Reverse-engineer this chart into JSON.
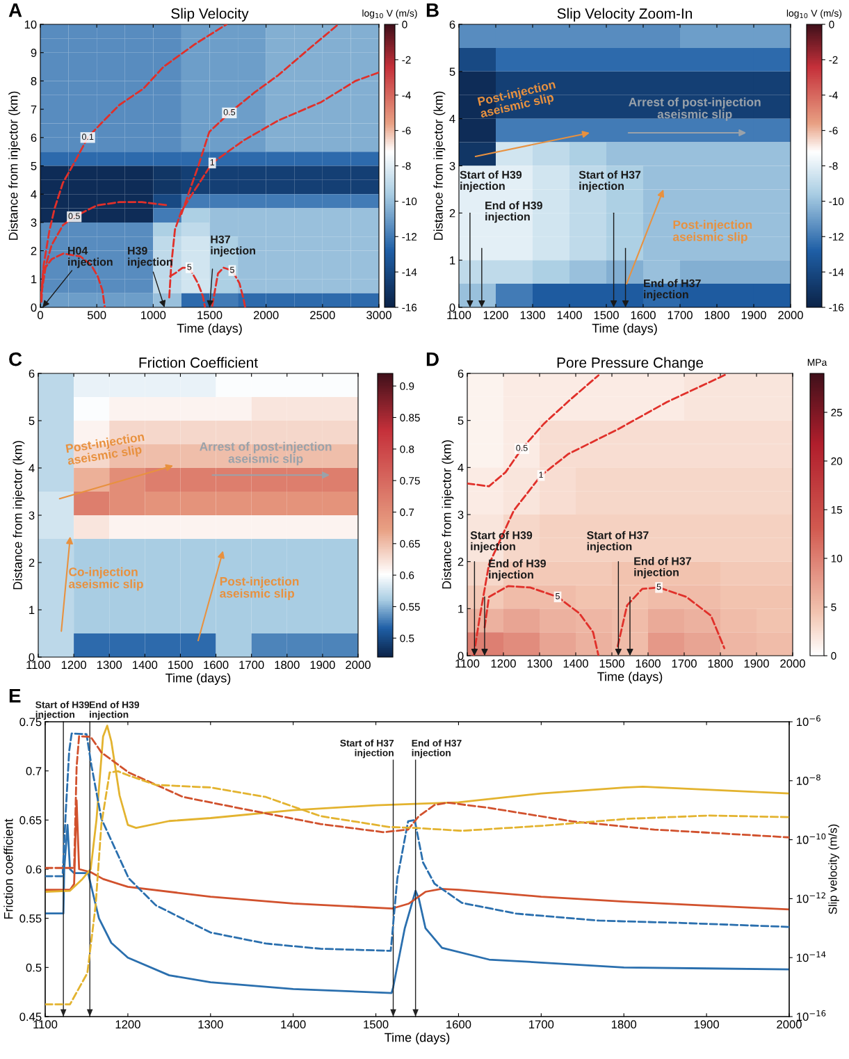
{
  "chart_data": [
    {
      "type": "heatmap",
      "title": "Slip Velocity",
      "xlabel": "Time (days)",
      "ylabel": "Distance from injector (km)",
      "clabel": "log$_{10}$ V (m/s)",
      "xlim": [
        0,
        3000
      ],
      "xticks": [
        0,
        500,
        1000,
        1500,
        2000,
        2500,
        3000
      ],
      "ylim": [
        0,
        10
      ],
      "yticks": [
        0,
        1,
        2,
        3,
        4,
        5,
        6,
        7,
        8,
        9,
        10
      ],
      "clim": [
        -16,
        0
      ],
      "cticks": [
        -16,
        -14,
        -12,
        -10,
        -8,
        -6,
        -4,
        -2,
        0
      ],
      "cells": [
        [
          -11.5,
          -11.5,
          -11.5,
          -11.5,
          -11.5,
          -11,
          -11,
          -11,
          -10.5,
          -10.5,
          -10.5,
          -10.5
        ],
        [
          -11.5,
          -11.5,
          -11.5,
          -11.5,
          -11.5,
          -11,
          -11,
          -11,
          -10.5,
          -10.5,
          -10.5,
          -10.5
        ],
        [
          -11.5,
          -11.5,
          -11.5,
          -11.5,
          -11.5,
          -11,
          -11,
          -11,
          -10.5,
          -10.5,
          -10.5,
          -10.5
        ],
        [
          -11.5,
          -11.5,
          -11.5,
          -11.5,
          -11.5,
          -11,
          -11,
          -11,
          -10.5,
          -10.5,
          -10.5,
          -10.5
        ],
        [
          -11.5,
          -11.5,
          -11.5,
          -11.5,
          -11.5,
          -11,
          -11,
          -11,
          -10.5,
          -10.5,
          -10.5,
          -10.5
        ],
        [
          -11.5,
          -11.5,
          -11.5,
          -11.5,
          -11.5,
          -11,
          -11,
          -11,
          -10.5,
          -10.5,
          -10.5,
          -10.5
        ],
        [
          -11.5,
          -11.5,
          -11.5,
          -11.5,
          -11.5,
          -11,
          -11,
          -11,
          -10.5,
          -10.5,
          -10.5,
          -10.5
        ],
        [
          -11.5,
          -11.5,
          -11.5,
          -11.5,
          -11.5,
          -11,
          -11,
          -11,
          -10.5,
          -10.5,
          -10.5,
          -10.5
        ],
        [
          -11.5,
          -11.5,
          -11.5,
          -11.5,
          -11.5,
          -11,
          -11,
          -11,
          -10.5,
          -10.5,
          -10.5,
          -10.5
        ],
        [
          -12.5,
          -12.5,
          -12.5,
          -12.5,
          -12.5,
          -12.5,
          -12.5,
          -12.5,
          -12.5,
          -12.5,
          -12.5,
          -12.5
        ],
        [
          -15.5,
          -15.5,
          -15.5,
          -15.5,
          -15,
          -14.5,
          -14.5,
          -14.5,
          -14.5,
          -14.5,
          -14.5,
          -14.5
        ],
        [
          -15.5,
          -15.5,
          -15.5,
          -15.5,
          -15,
          -14.5,
          -14.5,
          -14.5,
          -14.5,
          -14.5,
          -14.5,
          -14.5
        ],
        [
          -15.5,
          -15.5,
          -15.5,
          -15.5,
          -14,
          -12,
          -12,
          -12,
          -12,
          -12,
          -12,
          -12
        ],
        [
          -15.5,
          -15.5,
          -15.5,
          -15.5,
          -12,
          -9.5,
          -10,
          -10,
          -10,
          -10,
          -10,
          -10
        ],
        [
          -11.5,
          -11.5,
          -11.5,
          -11.5,
          -9.5,
          -9,
          -10,
          -10,
          -10,
          -10,
          -10,
          -10
        ],
        [
          -11.5,
          -11.5,
          -11.5,
          -11.5,
          -9,
          -8.5,
          -9.5,
          -10,
          -10,
          -10,
          -10,
          -10
        ],
        [
          -11.5,
          -11.5,
          -11.5,
          -11.5,
          -9,
          -8.5,
          -9.5,
          -10,
          -10,
          -10,
          -10,
          -10
        ],
        [
          -11.5,
          -11.5,
          -11.5,
          -11.5,
          -9,
          -8.5,
          -9.5,
          -10,
          -10,
          -10,
          -10,
          -10
        ],
        [
          -11.5,
          -11.5,
          -11.5,
          -11.5,
          -9,
          -8.5,
          -9.5,
          -10,
          -10,
          -10,
          -10,
          -10
        ],
        [
          -11,
          -11,
          -11,
          -11,
          -10,
          -12.5,
          -12,
          -12.5,
          -12.5,
          -12.5,
          -12.5,
          -12.5
        ]
      ],
      "line_style": "dashed",
      "series": [
        {
          "type": "line",
          "name": "0.1",
          "color": "#e0302a",
          "x": [
            5,
            30,
            80,
            127,
            200,
            305,
            420,
            546,
            700,
            914,
            1091,
            1370,
            1650
          ],
          "values": [
            0.3,
            1.5,
            2.7,
            3.5,
            4.4,
            5.14,
            6.0,
            6.53,
            7.15,
            7.73,
            8.5,
            9.3,
            10
          ]
        },
        {
          "type": "line",
          "name": "0.5",
          "color": "#e0302a",
          "x": [
            10,
            50,
            100,
            200,
            300,
            500,
            700,
            900,
            1140
          ],
          "values": [
            0.5,
            1.5,
            2.2,
            2.9,
            3.2,
            3.6,
            3.72,
            3.72,
            3.6
          ]
        },
        {
          "type": "line",
          "name": "0.5",
          "color": "#e0302a",
          "x": [
            1250,
            1294,
            1400,
            1497,
            1675,
            1900,
            2107,
            2400,
            2640
          ],
          "values": [
            3.3,
            3.8,
            5.0,
            6.2,
            6.87,
            7.6,
            8.2,
            9.2,
            10
          ]
        },
        {
          "type": "line",
          "name": "1",
          "color": "#e0302a",
          "x": [
            1142,
            1160,
            1193,
            1250,
            1345,
            1523,
            1802,
            2107,
            2487,
            2792,
            3000
          ],
          "values": [
            0.35,
            1.5,
            2.75,
            3.4,
            4.0,
            5.1,
            5.9,
            6.6,
            7.25,
            8.0,
            8.3
          ]
        },
        {
          "type": "line",
          "color": "#e0302a",
          "x": [
            10,
            25,
            100,
            203,
            355,
            450,
            508,
            550,
            571
          ],
          "values": [
            0.2,
            1.3,
            1.7,
            1.9,
            1.8,
            1.5,
            1.1,
            0.6,
            0
          ]
        },
        {
          "type": "line",
          "name": "5",
          "color": "#e0302a",
          "x": [
            1150,
            1193,
            1260,
            1320,
            1396,
            1440,
            1459
          ],
          "values": [
            1.1,
            1.2,
            1.4,
            1.4,
            0.85,
            0.4,
            0
          ]
        },
        {
          "type": "line",
          "name": "5",
          "color": "#e0302a",
          "x": [
            1523,
            1574,
            1624,
            1700,
            1764,
            1800,
            1815
          ],
          "values": [
            0.05,
            1.2,
            1.4,
            1.3,
            0.85,
            0.3,
            0
          ]
        }
      ],
      "annotations": [
        "A",
        "H04\ninjection",
        "H39\ninjection",
        {
          "text": "H37\ninjection",
          "x": 1500,
          "y": 0
        }
      ]
    },
    {
      "type": "heatmap",
      "title": "Slip Velocity Zoom-In",
      "xlabel": "Time (days)",
      "ylabel": "Distance from injector (km)",
      "clabel": "log$_{10}$ V (m/s)",
      "xlim": [
        1100,
        2000
      ],
      "xticks": [
        1100,
        1200,
        1300,
        1400,
        1500,
        1600,
        1700,
        1800,
        1900,
        2000
      ],
      "ylim": [
        0,
        6
      ],
      "yticks": [
        0,
        1,
        2,
        3,
        4,
        5,
        6
      ],
      "clim": [
        -16,
        0
      ],
      "cticks": [
        -16,
        -14,
        -12,
        -10,
        -8,
        -6,
        -4,
        -2,
        0
      ],
      "cells": [
        [
          -11.5,
          -11.5,
          -11.5,
          -11.5,
          -11.5,
          -11.5,
          -11,
          -11,
          -11
        ],
        [
          -14,
          -12.5,
          -12.5,
          -12.5,
          -12.5,
          -12.5,
          -12.5,
          -12.5,
          -12.5
        ],
        [
          -15.5,
          -14.5,
          -14.5,
          -14.5,
          -14.5,
          -14.5,
          -14.5,
          -14.5,
          -14.5
        ],
        [
          -15.5,
          -14.5,
          -14.5,
          -14.5,
          -14.5,
          -14.5,
          -14.5,
          -14.5,
          -14.5
        ],
        [
          -15.5,
          -12,
          -12,
          -12,
          -12,
          -12,
          -12,
          -12,
          -12
        ],
        [
          -15,
          -8.5,
          -9,
          -9.5,
          -10,
          -10,
          -10,
          -10,
          -10
        ],
        [
          -8,
          -8,
          -8.5,
          -9,
          -9.5,
          -10,
          -10,
          -10,
          -10
        ],
        [
          -8,
          -8,
          -8.5,
          -9,
          -9.5,
          -10,
          -10,
          -10,
          -10
        ],
        [
          -8,
          -8,
          -8.5,
          -9,
          -9.5,
          -10,
          -10,
          -10,
          -10
        ],
        [
          -8,
          -8,
          -8.5,
          -9,
          -9.5,
          -10,
          -10,
          -10,
          -10
        ],
        [
          -9,
          -9,
          -9.5,
          -10,
          -10.5,
          -10,
          -10.5,
          -10.5,
          -10.5
        ],
        [
          -10,
          -12,
          -13,
          -13,
          -13,
          -12.5,
          -13,
          -13,
          -13
        ]
      ],
      "annotations": [
        "B",
        "Start of H39\ninjection",
        "End of H39\ninjection",
        "Start of H37\ninjection",
        "End of H37\ninjection",
        "Post-injection\naseismic slip",
        "Arrest of post-injection\naseismic slip",
        "Post-injection\naseismic slip"
      ]
    },
    {
      "type": "heatmap",
      "title": "Friction Coefficient",
      "xlabel": "Time (days)",
      "ylabel": "Distance from injector (km)",
      "xlim": [
        1100,
        2000
      ],
      "xticks": [
        1100,
        1200,
        1300,
        1400,
        1500,
        1600,
        1700,
        1800,
        1900,
        2000
      ],
      "ylim": [
        0,
        6
      ],
      "yticks": [
        0,
        1,
        2,
        3,
        4,
        5,
        6
      ],
      "clim": [
        0.47,
        0.92
      ],
      "cticks": [
        0.5,
        0.55,
        0.6,
        0.65,
        0.7,
        0.75,
        0.8,
        0.85,
        0.9
      ],
      "cells": [
        [
          0.57,
          0.59,
          0.59,
          0.59,
          0.59,
          0.6,
          0.6,
          0.6,
          0.6
        ],
        [
          0.57,
          0.6,
          0.61,
          0.61,
          0.61,
          0.61,
          0.62,
          0.62,
          0.62
        ],
        [
          0.57,
          0.61,
          0.63,
          0.63,
          0.63,
          0.63,
          0.63,
          0.63,
          0.63
        ],
        [
          0.57,
          0.63,
          0.65,
          0.65,
          0.65,
          0.65,
          0.65,
          0.65,
          0.65
        ],
        [
          0.57,
          0.66,
          0.7,
          0.72,
          0.72,
          0.72,
          0.72,
          0.72,
          0.72
        ],
        [
          0.58,
          0.72,
          0.7,
          0.69,
          0.69,
          0.69,
          0.69,
          0.69,
          0.69
        ],
        [
          0.58,
          0.62,
          0.61,
          0.61,
          0.61,
          0.61,
          0.61,
          0.61,
          0.61
        ],
        [
          0.57,
          0.56,
          0.56,
          0.56,
          0.56,
          0.56,
          0.56,
          0.56,
          0.56
        ],
        [
          0.57,
          0.56,
          0.56,
          0.56,
          0.56,
          0.56,
          0.56,
          0.56,
          0.56
        ],
        [
          0.57,
          0.56,
          0.56,
          0.56,
          0.56,
          0.56,
          0.56,
          0.56,
          0.56
        ],
        [
          0.57,
          0.56,
          0.56,
          0.56,
          0.56,
          0.56,
          0.56,
          0.56,
          0.56
        ],
        [
          0.57,
          0.52,
          0.52,
          0.52,
          0.52,
          0.56,
          0.53,
          0.53,
          0.53
        ]
      ],
      "annotations": [
        "C",
        "Post-injection\naseismic slip",
        "Arrest of post-injection\naseismic slip",
        "Co-injection\naseismic slip",
        "Post-injection\naseismic slip"
      ]
    },
    {
      "type": "heatmap",
      "title": "Pore Pressure Change",
      "xlabel": "Time (days)",
      "ylabel": "Distance from injector (km)",
      "clabel": "MPa",
      "xlim": [
        1100,
        2000
      ],
      "xticks": [
        1100,
        1200,
        1300,
        1400,
        1500,
        1600,
        1700,
        1800,
        1900,
        2000
      ],
      "ylim": [
        0,
        6
      ],
      "yticks": [
        0,
        1,
        2,
        3,
        4,
        5,
        6
      ],
      "clim": [
        0,
        29
      ],
      "cticks": [
        0,
        5,
        10,
        15,
        20,
        25
      ],
      "cells": [
        [
          1,
          1.5,
          1.5,
          1.5,
          1.5,
          1.5,
          2,
          2,
          2
        ],
        [
          1,
          1.5,
          1.5,
          1.5,
          1.5,
          1.5,
          2,
          2,
          2
        ],
        [
          1,
          1.5,
          2.5,
          2.5,
          2.5,
          2.5,
          2.5,
          2.5,
          2.5
        ],
        [
          1,
          1.5,
          2.5,
          2.5,
          2.5,
          2.5,
          2.5,
          2.5,
          2.5
        ],
        [
          1.5,
          2,
          2.5,
          3,
          3,
          3,
          3,
          3,
          3
        ],
        [
          1.5,
          2,
          2.5,
          3,
          3,
          3,
          3,
          3,
          3
        ],
        [
          2,
          3,
          3.5,
          3.5,
          3.5,
          3.5,
          3.5,
          3.5,
          3.5
        ],
        [
          2,
          3,
          3.5,
          3.5,
          3.5,
          3.5,
          3.5,
          3.5,
          3.5
        ],
        [
          3,
          4,
          4,
          4,
          4.5,
          4.5,
          4.5,
          4,
          4
        ],
        [
          4,
          5,
          5,
          4.5,
          4.5,
          5,
          5,
          4.5,
          4.5
        ],
        [
          6,
          7,
          6,
          5.5,
          5,
          6.5,
          6,
          5,
          4.5
        ],
        [
          10,
          9,
          7,
          6,
          5,
          8,
          7,
          5.5,
          5
        ]
      ],
      "line_style": "dashed",
      "series": [
        {
          "type": "line",
          "name": "0.5",
          "color": "#e0302a",
          "x": [
            1100,
            1160,
            1206,
            1251,
            1312,
            1380,
            1463
          ],
          "values": [
            3.66,
            3.6,
            3.9,
            4.4,
            4.93,
            5.41,
            5.96
          ]
        },
        {
          "type": "line",
          "name": "1",
          "color": "#e0302a",
          "x": [
            1118,
            1134,
            1160,
            1229,
            1304,
            1380,
            1516,
            1652,
            1819
          ],
          "values": [
            0,
            0.8,
            1.94,
            3.09,
            3.83,
            4.29,
            4.81,
            5.39,
            5.99
          ]
        },
        {
          "type": "line",
          "name": "5",
          "color": "#e0302a",
          "x": [
            1148,
            1160,
            1213,
            1274,
            1350,
            1410,
            1448,
            1463
          ],
          "values": [
            0.6,
            1.25,
            1.48,
            1.45,
            1.25,
            0.9,
            0.5,
            0
          ]
        },
        {
          "type": "line",
          "name": "5",
          "color": "#e0302a",
          "x": [
            1516,
            1542,
            1584,
            1630,
            1706,
            1774,
            1811
          ],
          "values": [
            0.2,
            1.07,
            1.42,
            1.45,
            1.25,
            0.85,
            0.16
          ]
        }
      ],
      "annotations": [
        "D",
        {
          "text": "Start of H39\ninjection",
          "x": 1120,
          "y": 0
        },
        "End of H39\ninjection",
        "Start of H37\ninjection",
        "End of H37\ninjection"
      ]
    },
    {
      "type": "line",
      "xlabel": "Time (days)",
      "ylabel": "Friction coefficient",
      "y2label": "Slip velocity (m/s)",
      "xlim": [
        1100,
        2000
      ],
      "xticks": [
        1100,
        1200,
        1300,
        1400,
        1500,
        1600,
        1700,
        1800,
        1900,
        2000
      ],
      "ylim": [
        0.45,
        0.75
      ],
      "yticks": [
        0.45,
        0.5,
        0.55,
        0.6,
        0.65,
        0.7,
        0.75
      ],
      "y2lim": [
        1e-16,
        1e-06
      ],
      "log": "y2",
      "y2ticks": [
        {
          "value": 1e-16,
          "label": "10$^{−16}$"
        },
        {
          "value": 1e-14,
          "label": "10$^{−14}$"
        },
        {
          "value": 1e-12,
          "label": "10$^{−12}$"
        },
        {
          "value": 1e-10,
          "label": "10$^{−10}$"
        },
        {
          "value": 1e-08,
          "label": "10$^{−8}$"
        },
        {
          "value": 1e-06,
          "label": "10$^{−6}$"
        }
      ],
      "series": [
        {
          "color": "#2a6fae",
          "line_style": "solid",
          "x": [
            1100,
            1122,
            1123,
            1127,
            1130,
            1135,
            1152,
            1155,
            1165,
            1180,
            1200,
            1250,
            1300,
            1400,
            1519,
            1521,
            1535,
            1548,
            1552,
            1560,
            1580,
            1637,
            1700,
            1800,
            1900,
            2000
          ],
          "values": [
            0.555,
            0.555,
            0.6,
            0.645,
            0.6,
            0.596,
            0.596,
            0.585,
            0.55,
            0.525,
            0.51,
            0.492,
            0.485,
            0.478,
            0.474,
            0.48,
            0.54,
            0.578,
            0.57,
            0.54,
            0.52,
            0.508,
            0.505,
            0.5,
            0.499,
            0.498
          ]
        },
        {
          "color": "#d1512d",
          "line_style": "solid",
          "x": [
            1100,
            1130,
            1135,
            1138,
            1141,
            1155,
            1170,
            1200,
            1300,
            1400,
            1520,
            1540,
            1560,
            1579,
            1600,
            1700,
            1800,
            1900,
            2000
          ],
          "values": [
            0.579,
            0.579,
            0.585,
            0.67,
            0.6,
            0.597,
            0.59,
            0.582,
            0.572,
            0.565,
            0.56,
            0.565,
            0.577,
            0.58,
            0.579,
            0.572,
            0.567,
            0.563,
            0.559
          ]
        },
        {
          "color": "#e3b32f",
          "line_style": "solid",
          "x": [
            1100,
            1130,
            1145,
            1155,
            1162,
            1170,
            1175,
            1180,
            1190,
            1200,
            1210,
            1250,
            1300,
            1400,
            1500,
            1600,
            1700,
            1800,
            1823,
            1900,
            2000
          ],
          "values": [
            0.577,
            0.578,
            0.59,
            0.6,
            0.65,
            0.735,
            0.746,
            0.73,
            0.675,
            0.645,
            0.642,
            0.649,
            0.652,
            0.66,
            0.665,
            0.668,
            0.677,
            0.683,
            0.684,
            0.681,
            0.677
          ]
        },
        {
          "color": "#2a6fae",
          "line_style": "dashed",
          "axis": "y2",
          "x": [
            1100,
            1121,
            1125,
            1129,
            1132,
            1150,
            1156,
            1168,
            1201,
            1234,
            1300,
            1367,
            1433,
            1518,
            1526,
            1539,
            1547,
            1557,
            1571,
            1604,
            1670,
            1770,
            1870,
            2000
          ],
          "values": [
            5.8e-12,
            5.8e-12,
            1e-09,
            1e-07,
            4e-07,
            3.8e-07,
            3.2e-08,
            5.1e-10,
            4.9e-12,
            5.9e-13,
            7.1e-14,
            3e-14,
            2e-14,
            1.7e-14,
            4.9e-12,
            4.2e-10,
            4.6e-10,
            1.7e-11,
            3.2e-12,
            7.2e-13,
            3.1e-13,
            1.8e-13,
            1.5e-13,
            1.1e-13
          ]
        },
        {
          "color": "#d1512d",
          "line_style": "dashed",
          "axis": "y2",
          "x": [
            1100,
            1135,
            1138,
            1141,
            1155,
            1168,
            1201,
            1267,
            1333,
            1433,
            1509,
            1539,
            1552,
            1571,
            1587,
            1637,
            1737,
            1837,
            2000
          ],
          "values": [
            1.1e-11,
            1.1e-11,
            3e-08,
            3.2e-07,
            3.1e-07,
            9.1e-08,
            1.9e-08,
            2.8e-09,
            1.2e-09,
            3.4e-10,
            1.8e-10,
            2.2e-10,
            6.3e-10,
            1.5e-09,
            1.8e-09,
            1.2e-09,
            4.2e-10,
            2.2e-10,
            1.2e-10
          ]
        },
        {
          "color": "#e3b32f",
          "line_style": "dashed",
          "axis": "y2",
          "x": [
            1100,
            1130,
            1151,
            1161,
            1168,
            1178,
            1188,
            1201,
            1234,
            1300,
            1367,
            1433,
            1516,
            1548,
            1604,
            1704,
            1804,
            1904,
            2000
          ],
          "values": [
            2.6e-16,
            2.6e-16,
            3e-15,
            5.9e-13,
            3.4e-10,
            1.9e-08,
            2.1e-08,
            1.5e-08,
            7.2e-09,
            5.9e-09,
            2.8e-09,
            6.3e-10,
            2.7e-10,
            2.5e-10,
            2e-10,
            3e-10,
            5.1e-10,
            6.6e-10,
            5.8e-10
          ]
        }
      ],
      "ref_lines": [
        {
          "axis": "x",
          "value": 1122,
          "label": "Start of H39\ninjection"
        },
        {
          "axis": "x",
          "value": 1154,
          "label": "End of H39\ninjection"
        },
        {
          "axis": "x",
          "value": 1521,
          "label": "Start of H37\ninjection"
        },
        {
          "axis": "x",
          "value": 1548,
          "label": "End of H37\ninjection"
        }
      ],
      "annotations": [
        "E"
      ]
    }
  ]
}
